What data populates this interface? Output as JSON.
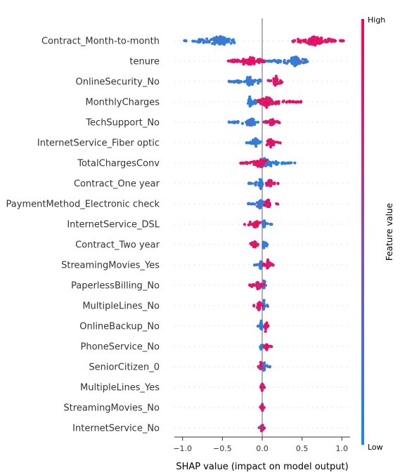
{
  "chart_data": {
    "type": "scatter",
    "subtype": "shap_beeswarm",
    "features": [
      {
        "name": "Contract_Month-to-month",
        "low_range": [
          -0.98,
          -0.33
        ],
        "low_center": -0.53,
        "high_range": [
          0.38,
          1.02
        ],
        "high_center": 0.65
      },
      {
        "name": "tenure",
        "low_range": [
          0.0,
          0.57
        ],
        "low_center": 0.42,
        "high_range": [
          -0.45,
          0.05
        ],
        "high_center": -0.15
      },
      {
        "name": "OnlineSecurity_No",
        "low_range": [
          -0.42,
          -0.02
        ],
        "low_center": -0.15,
        "high_range": [
          0.07,
          0.28
        ],
        "high_center": 0.17
      },
      {
        "name": "MonthlyCharges",
        "low_range": [
          -0.2,
          0.0
        ],
        "low_center": -0.15,
        "high_range": [
          -0.05,
          0.5
        ],
        "high_center": 0.05
      },
      {
        "name": "TechSupport_No",
        "low_range": [
          -0.42,
          -0.05
        ],
        "low_center": -0.15,
        "high_range": [
          0.02,
          0.23
        ],
        "high_center": 0.12
      },
      {
        "name": "InternetService_Fiber optic",
        "low_range": [
          -0.2,
          -0.02
        ],
        "low_center": -0.08,
        "high_range": [
          0.05,
          0.23
        ],
        "high_center": 0.1
      },
      {
        "name": "TotalChargesConv",
        "low_range": [
          -0.05,
          0.42
        ],
        "low_center": 0.03,
        "high_range": [
          -0.28,
          0.05
        ],
        "high_center": -0.03
      },
      {
        "name": "Contract_One year",
        "low_range": [
          -0.17,
          0.02
        ],
        "low_center": -0.02,
        "high_range": [
          0.05,
          0.2
        ],
        "high_center": 0.1
      },
      {
        "name": "PaymentMethod_Electronic check",
        "low_range": [
          -0.18,
          0.02
        ],
        "low_center": -0.02,
        "high_range": [
          0.02,
          0.2
        ],
        "high_center": 0.07
      },
      {
        "name": "InternetService_DSL",
        "low_range": [
          -0.02,
          0.13
        ],
        "low_center": 0.02,
        "high_range": [
          -0.23,
          0.0
        ],
        "high_center": -0.08
      },
      {
        "name": "Contract_Two year",
        "low_range": [
          -0.02,
          0.07
        ],
        "low_center": 0.02,
        "high_range": [
          -0.15,
          -0.05
        ],
        "high_center": -0.1
      },
      {
        "name": "StreamingMovies_Yes",
        "low_range": [
          -0.1,
          0.02
        ],
        "low_center": -0.02,
        "high_range": [
          0.0,
          0.17
        ],
        "high_center": 0.07
      },
      {
        "name": "PaperlessBilling_No",
        "low_range": [
          -0.02,
          0.07
        ],
        "low_center": 0.02,
        "high_range": [
          -0.16,
          0.02
        ],
        "high_center": -0.05
      },
      {
        "name": "MultipleLines_No",
        "low_range": [
          -0.02,
          0.09
        ],
        "low_center": 0.02,
        "high_range": [
          -0.12,
          0.02
        ],
        "high_center": -0.04
      },
      {
        "name": "OnlineBackup_No",
        "low_range": [
          -0.07,
          0.02
        ],
        "low_center": -0.01,
        "high_range": [
          0.0,
          0.08
        ],
        "high_center": 0.04
      },
      {
        "name": "PhoneService_No",
        "low_range": [
          -0.04,
          0.02
        ],
        "low_center": -0.01,
        "high_range": [
          0.02,
          0.12
        ],
        "high_center": 0.06
      },
      {
        "name": "SeniorCitizen_0",
        "low_range": [
          -0.01,
          0.11
        ],
        "low_center": 0.02,
        "high_range": [
          -0.06,
          0.01
        ],
        "high_center": -0.02
      },
      {
        "name": "MultipleLines_Yes",
        "low_range": [
          -0.02,
          0.02
        ],
        "low_center": 0.0,
        "high_range": [
          -0.03,
          0.03
        ],
        "high_center": 0.0
      },
      {
        "name": "StreamingMovies_No",
        "low_range": [
          -0.02,
          0.02
        ],
        "low_center": 0.0,
        "high_range": [
          -0.03,
          0.03
        ],
        "high_center": 0.0
      },
      {
        "name": "InternetService_No",
        "low_range": [
          -0.04,
          0.03
        ],
        "low_center": 0.0,
        "high_range": [
          -0.02,
          0.04
        ],
        "high_center": 0.0
      }
    ],
    "xlabel": "SHAP value (impact on model output)",
    "xlim": [
      -1.1,
      1.1
    ],
    "xticks": [
      -1.0,
      -0.5,
      0.0,
      0.5,
      1.0
    ],
    "xtick_labels": [
      "−1.0",
      "−0.5",
      "0.0",
      "0.5",
      "1.0"
    ],
    "colorbar": {
      "title": "Feature value",
      "high_label": "High",
      "low_label": "Low",
      "high_color": "#ff0052",
      "mid_color": "#8a4fa8",
      "low_color": "#1e88e5"
    },
    "grid": false,
    "zero_line_color": "#999999"
  }
}
